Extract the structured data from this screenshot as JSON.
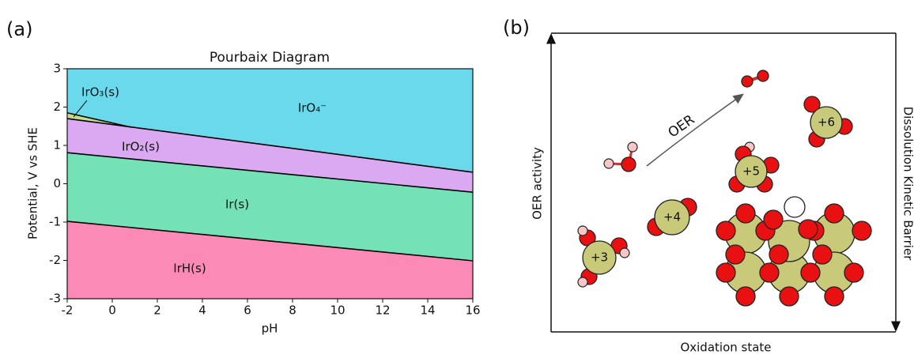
{
  "chart_data": {
    "type": "pourbaix",
    "panel_label": "(a)",
    "title": "Pourbaix Diagram",
    "x_label": "pH",
    "y_label": "Potential, V vs SHE",
    "xlim": [
      -2,
      16
    ],
    "ylim": [
      -3,
      3
    ],
    "xticks": [
      -2,
      0,
      2,
      4,
      6,
      8,
      10,
      12,
      14,
      16
    ],
    "yticks": [
      -3,
      -2,
      -1,
      0,
      1,
      2,
      3
    ],
    "regions": [
      {
        "name": "IrO₄⁻",
        "color": "#6bd9ec",
        "x": [
          -2,
          -2,
          0.8,
          16,
          16
        ],
        "y": [
          3,
          1.85,
          1.48,
          0.3,
          3
        ]
      },
      {
        "name": "IrO₃(s)",
        "color": "#c3dd8c",
        "x": [
          -2,
          -2,
          0.8
        ],
        "y": [
          1.85,
          1.7,
          1.48
        ]
      },
      {
        "name": "IrO₂(s)",
        "color": "#dba9f2",
        "x": [
          -2,
          16,
          16,
          -2
        ],
        "y": [
          1.7,
          0.3,
          -0.22,
          0.81
        ]
      },
      {
        "name": "Ir(s)",
        "color": "#74e2b6",
        "x": [
          -2,
          16,
          16,
          -2
        ],
        "y": [
          0.81,
          -0.22,
          -2.01,
          -0.98
        ]
      },
      {
        "name": "IrH(s)",
        "color": "#fb8bb6",
        "x": [
          -2,
          16,
          16,
          -2
        ],
        "y": [
          -0.98,
          -2.01,
          -3,
          -3
        ]
      }
    ],
    "boundaries": [
      {
        "color": "#000000",
        "x": [
          -2,
          16
        ],
        "y": [
          1.7,
          0.3
        ]
      },
      {
        "color": "#000000",
        "x": [
          -2,
          16
        ],
        "y": [
          0.81,
          -0.22
        ]
      },
      {
        "color": "#000000",
        "x": [
          -2,
          16
        ],
        "y": [
          -0.98,
          -2.01
        ]
      },
      {
        "color": "#000000",
        "x": [
          -2,
          0.8
        ],
        "y": [
          1.85,
          1.48
        ]
      }
    ]
  },
  "diagram": {
    "panel_label": "(b)",
    "arrow_label": "OER",
    "y_label": "OER activity",
    "y2_label": "Dissolution Kinetic Barrier",
    "x_label": "Oxidation state",
    "states": [
      "+3",
      "+4",
      "+5",
      "+6"
    ]
  }
}
